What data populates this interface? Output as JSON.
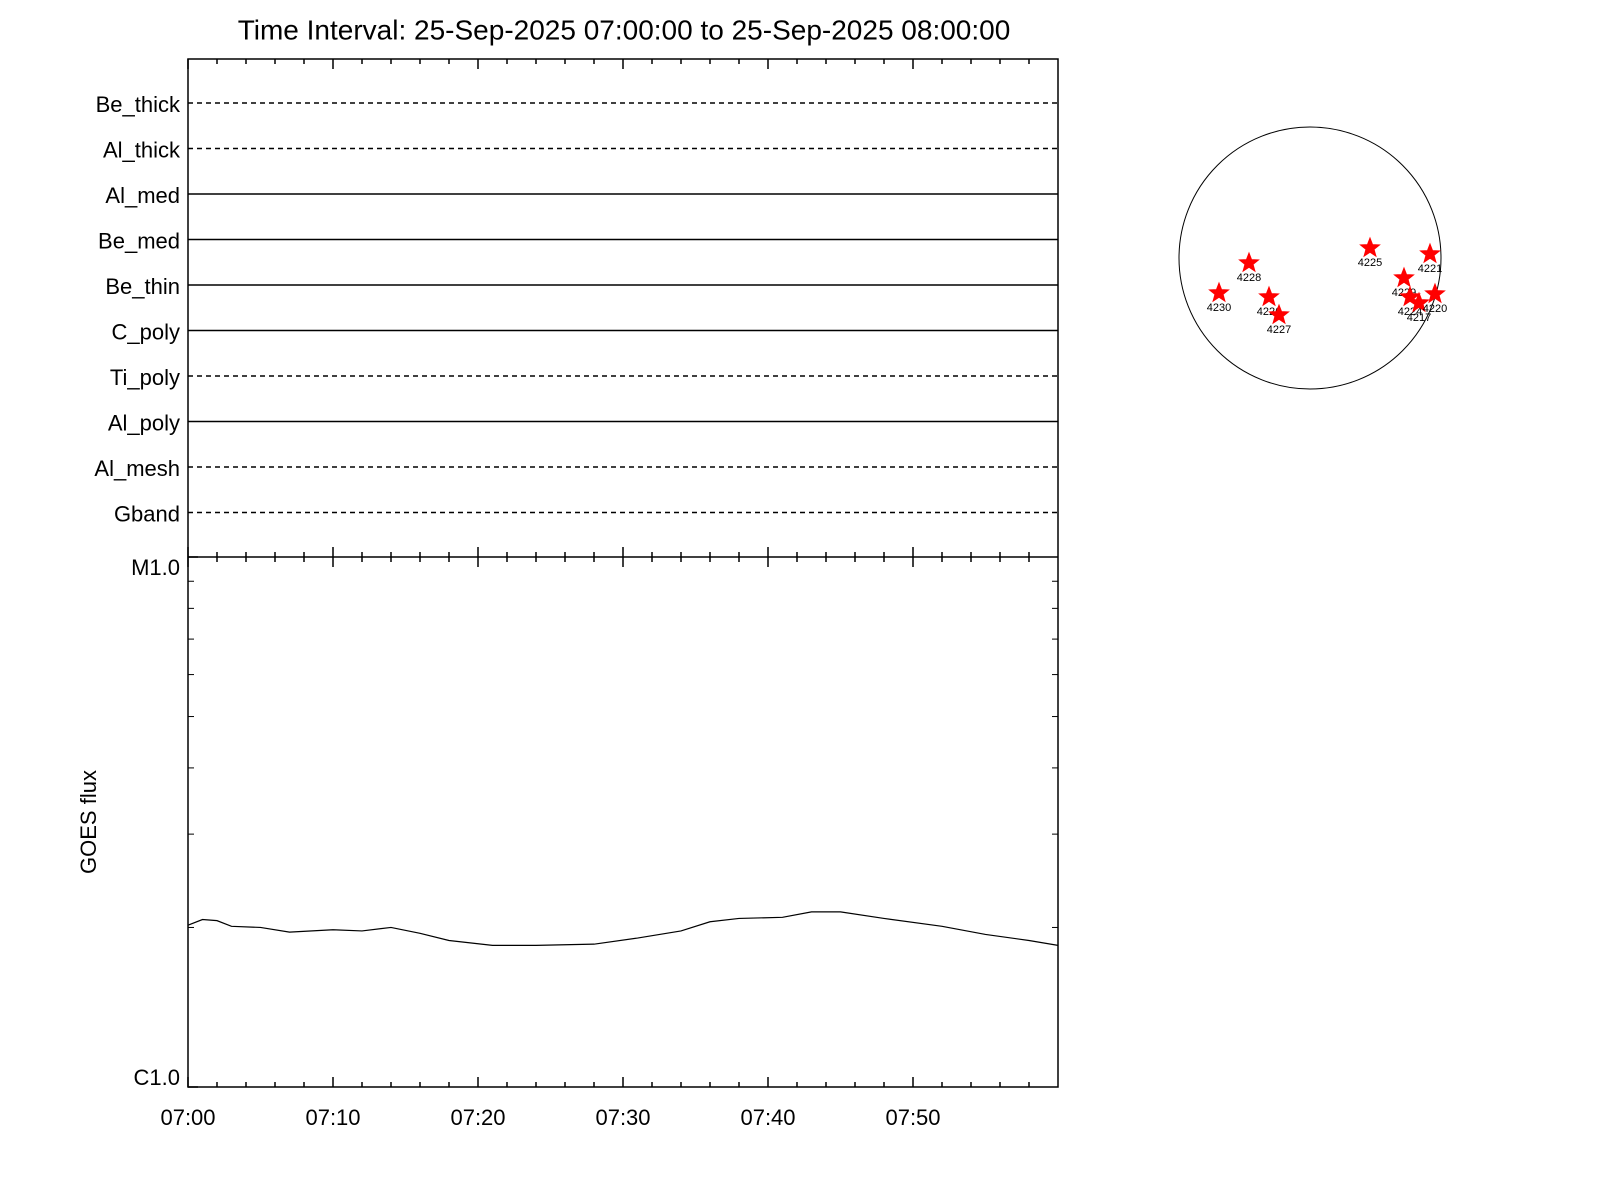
{
  "chart_data": {
    "type": "line",
    "title": "Time Interval: 25-Sep-2025 07:00:00 to 25-Sep-2025 08:00:00",
    "filters": [
      {
        "name": "Be_thick",
        "style": "dashed"
      },
      {
        "name": "Al_thick",
        "style": "dashed"
      },
      {
        "name": "Al_med",
        "style": "solid"
      },
      {
        "name": "Be_med",
        "style": "solid"
      },
      {
        "name": "Be_thin",
        "style": "solid"
      },
      {
        "name": "C_poly",
        "style": "solid"
      },
      {
        "name": "Ti_poly",
        "style": "dashed"
      },
      {
        "name": "Al_poly",
        "style": "solid"
      },
      {
        "name": "Al_mesh",
        "style": "dashed"
      },
      {
        "name": "Gband",
        "style": "dashed"
      }
    ],
    "ylabel": "GOES flux",
    "ylog": true,
    "ylim": [
      1e-06,
      1e-05
    ],
    "yticks": [
      {
        "value": 1e-06,
        "label": "C1.0"
      },
      {
        "value": 1e-05,
        "label": "M1.0"
      }
    ],
    "yminorticks": [
      2e-06,
      3e-06,
      4e-06,
      5e-06,
      6e-06,
      7e-06,
      8e-06,
      9e-06
    ],
    "xlim": [
      "07:00",
      "08:00"
    ],
    "xticks": [
      "07:00",
      "07:10",
      "07:20",
      "07:30",
      "07:40",
      "07:50"
    ],
    "series": [
      {
        "color": "#000000",
        "x": [
          "07:00",
          "07:01",
          "07:02",
          "07:03",
          "07:05",
          "07:07",
          "07:10",
          "07:12",
          "07:14",
          "07:16",
          "07:18",
          "07:21",
          "07:24",
          "07:28",
          "07:31",
          "07:34",
          "07:36",
          "07:38",
          "07:41",
          "07:43",
          "07:45",
          "07:48",
          "07:52",
          "07:55",
          "07:58",
          "08:00"
        ],
        "values": [
          2.02e-06,
          2.07e-06,
          2.06e-06,
          2.01e-06,
          2e-06,
          1.96e-06,
          1.98e-06,
          1.97e-06,
          2e-06,
          1.95e-06,
          1.89e-06,
          1.85e-06,
          1.85e-06,
          1.86e-06,
          1.91e-06,
          1.97e-06,
          2.05e-06,
          2.08e-06,
          2.09e-06,
          2.14e-06,
          2.14e-06,
          2.08e-06,
          2.01e-06,
          1.94e-06,
          1.89e-06,
          1.85e-06
        ]
      }
    ],
    "active_regions": [
      "4230",
      "4228",
      "4226",
      "4227",
      "4225",
      "4229",
      "4224",
      "4217",
      "4221",
      "4220"
    ],
    "region_color": "#ff0000"
  }
}
